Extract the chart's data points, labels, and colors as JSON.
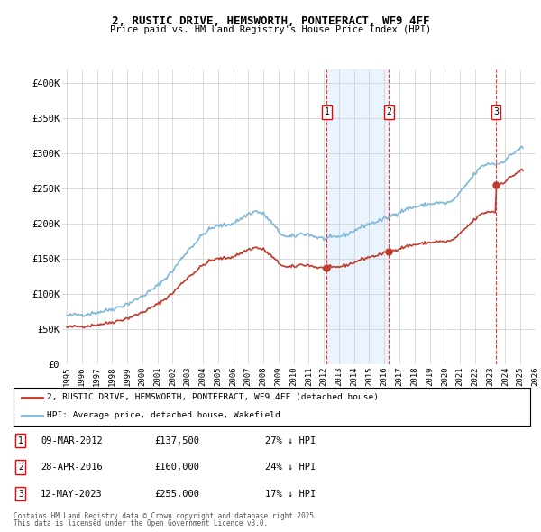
{
  "title": "2, RUSTIC DRIVE, HEMSWORTH, PONTEFRACT, WF9 4FF",
  "subtitle": "Price paid vs. HM Land Registry's House Price Index (HPI)",
  "legend_line1": "2, RUSTIC DRIVE, HEMSWORTH, PONTEFRACT, WF9 4FF (detached house)",
  "legend_line2": "HPI: Average price, detached house, Wakefield",
  "footer_line1": "Contains HM Land Registry data © Crown copyright and database right 2025.",
  "footer_line2": "This data is licensed under the Open Government Licence v3.0.",
  "transactions": [
    {
      "num": 1,
      "date": "09-MAR-2012",
      "price": "£137,500",
      "pct": "27% ↓ HPI",
      "year": 2012.19,
      "price_val": 137500
    },
    {
      "num": 2,
      "date": "28-APR-2016",
      "price": "£160,000",
      "pct": "24% ↓ HPI",
      "year": 2016.29,
      "price_val": 160000
    },
    {
      "num": 3,
      "date": "12-MAY-2023",
      "price": "£255,000",
      "pct": "17% ↓ HPI",
      "year": 2023.37,
      "price_val": 255000
    }
  ],
  "hpi_color": "#7db8d8",
  "price_color": "#c0392b",
  "background_color": "#ffffff",
  "grid_color": "#cccccc",
  "shade_color": "#ddeeff",
  "ylim": [
    0,
    420000
  ],
  "xlim": [
    1994.7,
    2025.5
  ],
  "yticks": [
    0,
    50000,
    100000,
    150000,
    200000,
    250000,
    300000,
    350000,
    400000
  ],
  "ytick_labels": [
    "£0",
    "£50K",
    "£100K",
    "£150K",
    "£200K",
    "£250K",
    "£300K",
    "£350K",
    "£400K"
  ],
  "xticks": [
    1995,
    1996,
    1997,
    1998,
    1999,
    2000,
    2001,
    2002,
    2003,
    2004,
    2005,
    2006,
    2007,
    2008,
    2009,
    2010,
    2011,
    2012,
    2013,
    2014,
    2015,
    2016,
    2017,
    2018,
    2019,
    2020,
    2021,
    2022,
    2023,
    2024,
    2025,
    2026
  ]
}
